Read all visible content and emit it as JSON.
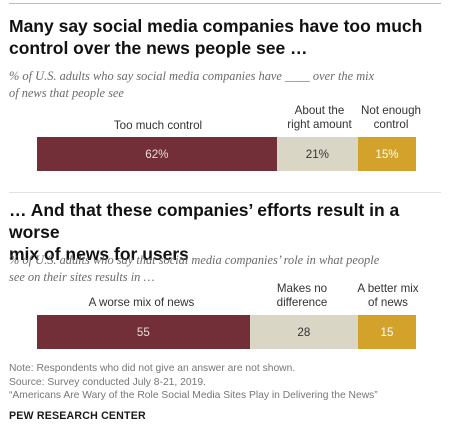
{
  "colors": {
    "too_much": "#722f37",
    "about_right": "#dad6c6",
    "not_enough": "#d2a22b",
    "label_dark_bg": "#e8dcdc",
    "label_light_bg": "#333333"
  },
  "chart1": {
    "title_line1": "Many say social media companies have too much",
    "title_line2": "control over the news people see …",
    "subtitle_line1": "% of U.S. adults who say social media companies have ____ over the mix",
    "subtitle_line2": "of news that people see",
    "labels": {
      "seg1": "Too much control",
      "seg2_line1": "About the",
      "seg2_line2": "right amount",
      "seg3_line1": "Not enough",
      "seg3_line2": "control"
    },
    "value_labels": [
      "62%",
      "21%",
      "15%"
    ]
  },
  "chart2": {
    "title_line1": "… And that these companies’ efforts result in a worse",
    "title_line2": "mix of news for users",
    "subtitle_line1": "% of U.S. adults who say that social media companies’ role in what people",
    "subtitle_line2": "see on their sites results in …",
    "labels": {
      "seg1": "A worse mix of news",
      "seg2_line1": "Makes no",
      "seg2_line2": "difference",
      "seg3_line1": "A better mix",
      "seg3_line2": "of news"
    },
    "value_labels": [
      "55",
      "28",
      "15"
    ]
  },
  "chart_data": [
    {
      "type": "bar",
      "orientation": "horizontal-stacked",
      "categories": [
        "Too much control",
        "About the right amount",
        "Not enough control"
      ],
      "values": [
        62,
        21,
        15
      ],
      "title": "Many say social media companies have too much control over the news people see …",
      "subtitle": "% of U.S. adults who say social media companies have ____ over the mix of news that people see"
    },
    {
      "type": "bar",
      "orientation": "horizontal-stacked",
      "categories": [
        "A worse mix of news",
        "Makes no difference",
        "A better mix of news"
      ],
      "values": [
        55,
        28,
        15
      ],
      "title": "… And that these companies’ efforts result in a worse mix of news for users",
      "subtitle": "% of U.S. adults who say that social media companies’ role in what people see on their sites results in …"
    }
  ],
  "footer": {
    "note": "Note: Respondents who did not give an answer are not shown.",
    "source": "Source: Survey conducted July 8-21, 2019.",
    "report": "“Americans Are Wary of the Role Social Media Sites Play in Delivering the News”",
    "brand": "PEW RESEARCH CENTER"
  }
}
